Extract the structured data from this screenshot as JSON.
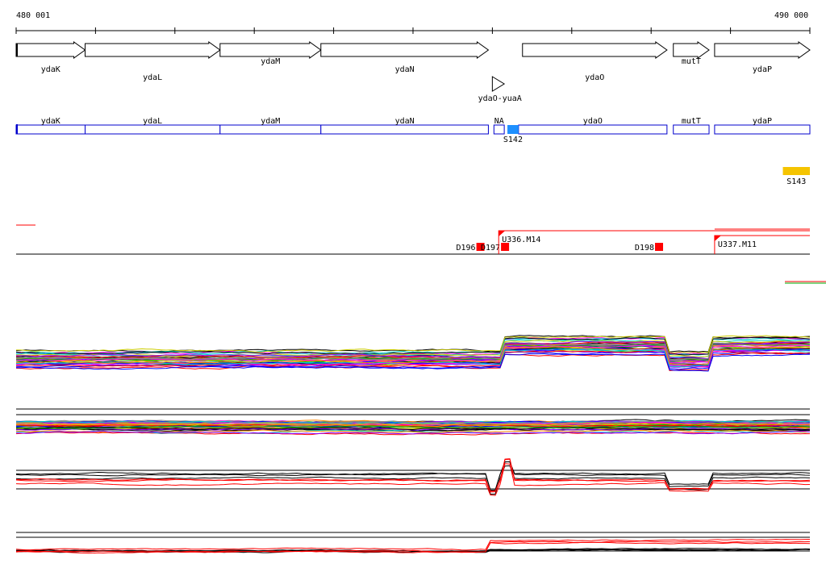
{
  "ruler": {
    "start_label": "480 001",
    "end_label": "490 000",
    "start": 480001,
    "end": 490000
  },
  "genes": [
    {
      "name": "ydaK",
      "start": 480001,
      "end": 480870,
      "strand": "+"
    },
    {
      "name": "ydaL",
      "start": 480870,
      "end": 482570,
      "strand": "+"
    },
    {
      "name": "ydaM",
      "start": 482570,
      "end": 483840,
      "strand": "+"
    },
    {
      "name": "ydaN",
      "start": 483840,
      "end": 485950,
      "strand": "+"
    },
    {
      "name": "ydaO",
      "start": 486380,
      "end": 488200,
      "strand": "+"
    },
    {
      "name": "mutT",
      "start": 488280,
      "end": 488730,
      "strand": "+"
    },
    {
      "name": "ydaP",
      "start": 488800,
      "end": 490000,
      "strand": "+"
    }
  ],
  "small_feature": {
    "name": "ydaO-yuaA",
    "start": 486000,
    "end": 486150
  },
  "segments": [
    {
      "label": "ydaK",
      "start": 480001,
      "end": 480870
    },
    {
      "label": "ydaL",
      "start": 480870,
      "end": 482570
    },
    {
      "label": "ydaM",
      "start": 482570,
      "end": 483840
    },
    {
      "label": "ydaN",
      "start": 483840,
      "end": 485950
    },
    {
      "label": "NA",
      "start": 486020,
      "end": 486150
    },
    {
      "label": "ydaO",
      "start": 486330,
      "end": 488200
    },
    {
      "label": "mutT",
      "start": 488280,
      "end": 488730
    },
    {
      "label": "ydaP",
      "start": 488800,
      "end": 490000
    }
  ],
  "markers": [
    {
      "label": "S142",
      "start": 486190,
      "end": 486330,
      "color": "#1e90ff",
      "row": "segment"
    },
    {
      "label": "S143",
      "start": 489660,
      "end": 490000,
      "color": "#f5c400",
      "row": "upper"
    }
  ],
  "tss": [
    {
      "label": "D196",
      "pos": 485850
    },
    {
      "label": "D197",
      "pos": 486160
    },
    {
      "label": "D198",
      "pos": 488100
    }
  ],
  "transcripts": [
    {
      "label": "U336.M14",
      "start": 486080,
      "end": 490000
    },
    {
      "label": "U337.M11",
      "start": 488800,
      "end": 490000
    }
  ],
  "colors": {
    "segment": "#0000cc",
    "tss": "#ff0000",
    "profile_palette": [
      "#000000",
      "#ff0000",
      "#00aa00",
      "#0000ff",
      "#ff00ff",
      "#00cccc",
      "#cccc00",
      "#ff8800",
      "#8800ff",
      "#888888"
    ]
  }
}
